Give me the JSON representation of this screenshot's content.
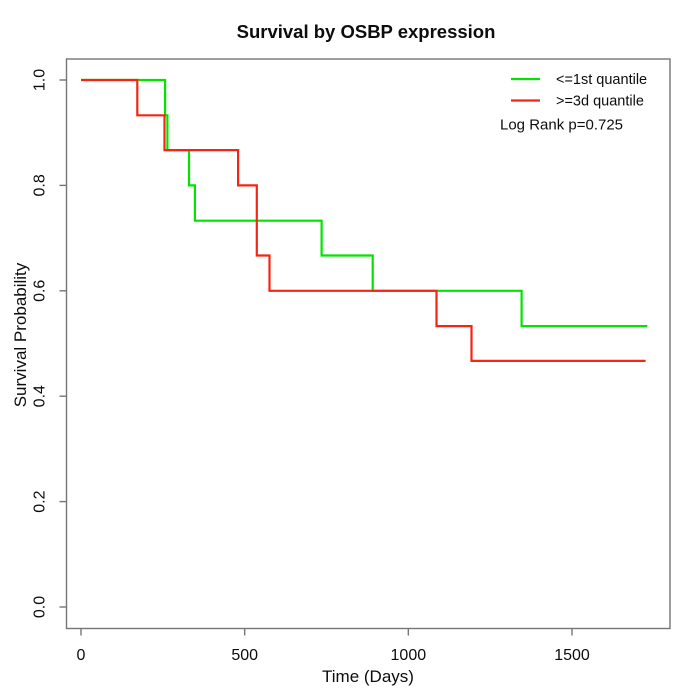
{
  "title": "Survival by OSBP expression",
  "x_axis": {
    "label": "Time (Days)",
    "ticks": [
      "0",
      "500",
      "1000",
      "1500"
    ],
    "tick_values": [
      0,
      500,
      1000,
      1500
    ]
  },
  "y_axis": {
    "label": "Survival Probability",
    "ticks": [
      "0.0",
      "0.2",
      "0.4",
      "0.6",
      "0.8",
      "1.0"
    ],
    "tick_values": [
      0.0,
      0.2,
      0.4,
      0.6,
      0.8,
      1.0
    ]
  },
  "legend": {
    "items": [
      {
        "label": "<=1st quantile",
        "color": "#00e400"
      },
      {
        "label": ">=3d quantile",
        "color": "#f42613"
      }
    ],
    "annotation": "Log Rank p=0.725"
  },
  "chart_data": {
    "type": "line",
    "subtype": "kaplan-meier-step",
    "title": "Survival by OSBP expression",
    "xlabel": "Time (Days)",
    "ylabel": "Survival Probability",
    "xlim": [
      -70,
      1800
    ],
    "ylim": [
      -0.04,
      1.04
    ],
    "x_ticks": [
      0,
      500,
      1000,
      1500
    ],
    "y_ticks": [
      0.0,
      0.2,
      0.4,
      0.6,
      0.8,
      1.0
    ],
    "grid": false,
    "legend_position": "top-right",
    "annotation": "Log Rank p=0.725",
    "series": [
      {
        "name": "<=1st quantile",
        "color": "#00e400",
        "step_points": [
          [
            0,
            1.0
          ],
          [
            257,
            0.933
          ],
          [
            264,
            0.867
          ],
          [
            330,
            0.8
          ],
          [
            348,
            0.733
          ],
          [
            735,
            0.667
          ],
          [
            891,
            0.6
          ],
          [
            1346,
            0.533
          ],
          [
            1730,
            0.533
          ]
        ]
      },
      {
        "name": ">=3d quantile",
        "color": "#f42613",
        "step_points": [
          [
            0,
            1.0
          ],
          [
            172,
            0.933
          ],
          [
            255,
            0.867
          ],
          [
            480,
            0.8
          ],
          [
            537,
            0.667
          ],
          [
            576,
            0.6
          ],
          [
            1086,
            0.533
          ],
          [
            1193,
            0.467
          ],
          [
            1725,
            0.467
          ]
        ]
      }
    ]
  }
}
